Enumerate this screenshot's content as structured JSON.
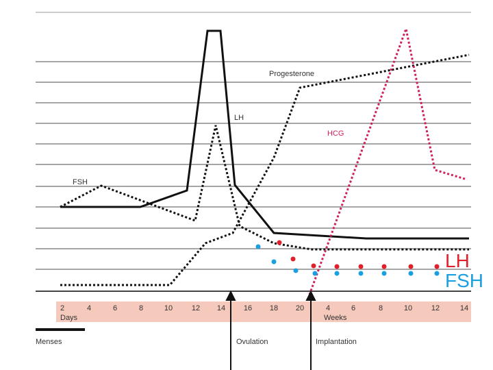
{
  "curve_labels": {
    "progesterone": "Progesterone",
    "lh": "LH",
    "hcg": "HCG",
    "fsh": "FSH"
  },
  "day_ticks": [
    "2",
    "4",
    "6",
    "8",
    "10",
    "12",
    "14",
    "16",
    "18",
    "20"
  ],
  "week_ticks": [
    "4",
    "6",
    "8",
    "10",
    "12",
    "14"
  ],
  "days_label": "Days",
  "weeks_label": "Weeks",
  "events": {
    "menses": "Menses",
    "ovulation": "Ovulation",
    "implantation": "Implantation"
  },
  "legend": {
    "lh": "LH",
    "fsh": "FSH"
  }
}
